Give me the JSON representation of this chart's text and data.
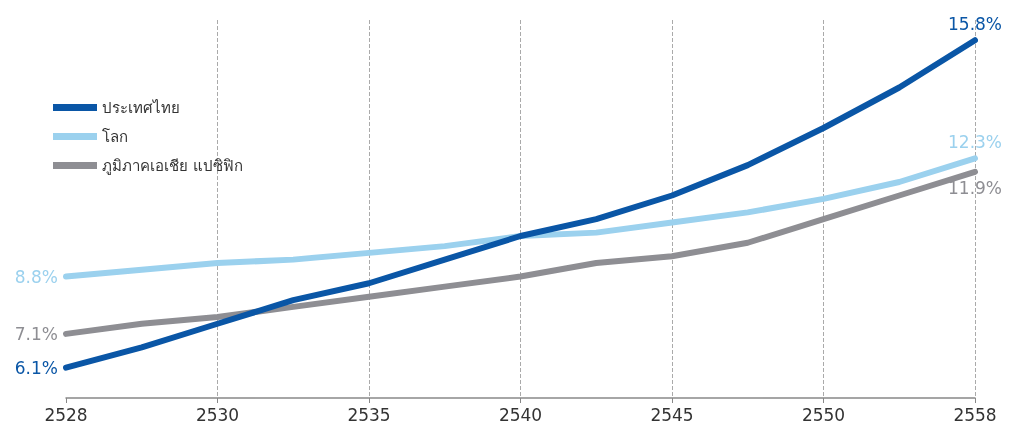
{
  "chart_data": {
    "type": "line",
    "categories": [
      "2528",
      null,
      "2530",
      null,
      "2535",
      null,
      "2540",
      null,
      "2545",
      null,
      "2550",
      null,
      "2558"
    ],
    "series": [
      {
        "name": "ประเทศไทย",
        "color": "#0a56a6",
        "values": [
          6.1,
          6.7,
          7.4,
          8.1,
          8.6,
          9.3,
          10.0,
          10.5,
          11.2,
          12.1,
          13.2,
          14.4,
          15.8
        ],
        "value_labels": [
          "6.1%",
          null,
          null,
          null,
          null,
          null,
          null,
          null,
          null,
          null,
          null,
          null,
          "15.8%"
        ]
      },
      {
        "name": "โลก",
        "color": "#9bd1ee",
        "values": [
          8.8,
          9.0,
          9.2,
          9.3,
          9.5,
          9.7,
          10.0,
          10.1,
          10.4,
          10.7,
          11.1,
          11.6,
          12.3
        ],
        "value_labels": [
          "8.8%",
          null,
          null,
          null,
          null,
          null,
          null,
          null,
          null,
          null,
          null,
          null,
          "12.3%"
        ]
      },
      {
        "name": "ภูมิภาคเอเชีย แปซิฟิก",
        "color": "#8e8e93",
        "values": [
          7.1,
          7.4,
          7.6,
          7.9,
          8.2,
          8.5,
          8.8,
          9.2,
          9.4,
          9.8,
          10.5,
          11.2,
          11.9
        ],
        "value_labels": [
          "7.1%",
          null,
          null,
          null,
          null,
          null,
          null,
          null,
          null,
          null,
          null,
          null,
          "11.9%"
        ]
      }
    ],
    "ylim": [
      5.2,
      16.4
    ],
    "tick_labels": "x",
    "grid": "x",
    "legend": "top left",
    "marker": "none",
    "line_style": "solid"
  }
}
